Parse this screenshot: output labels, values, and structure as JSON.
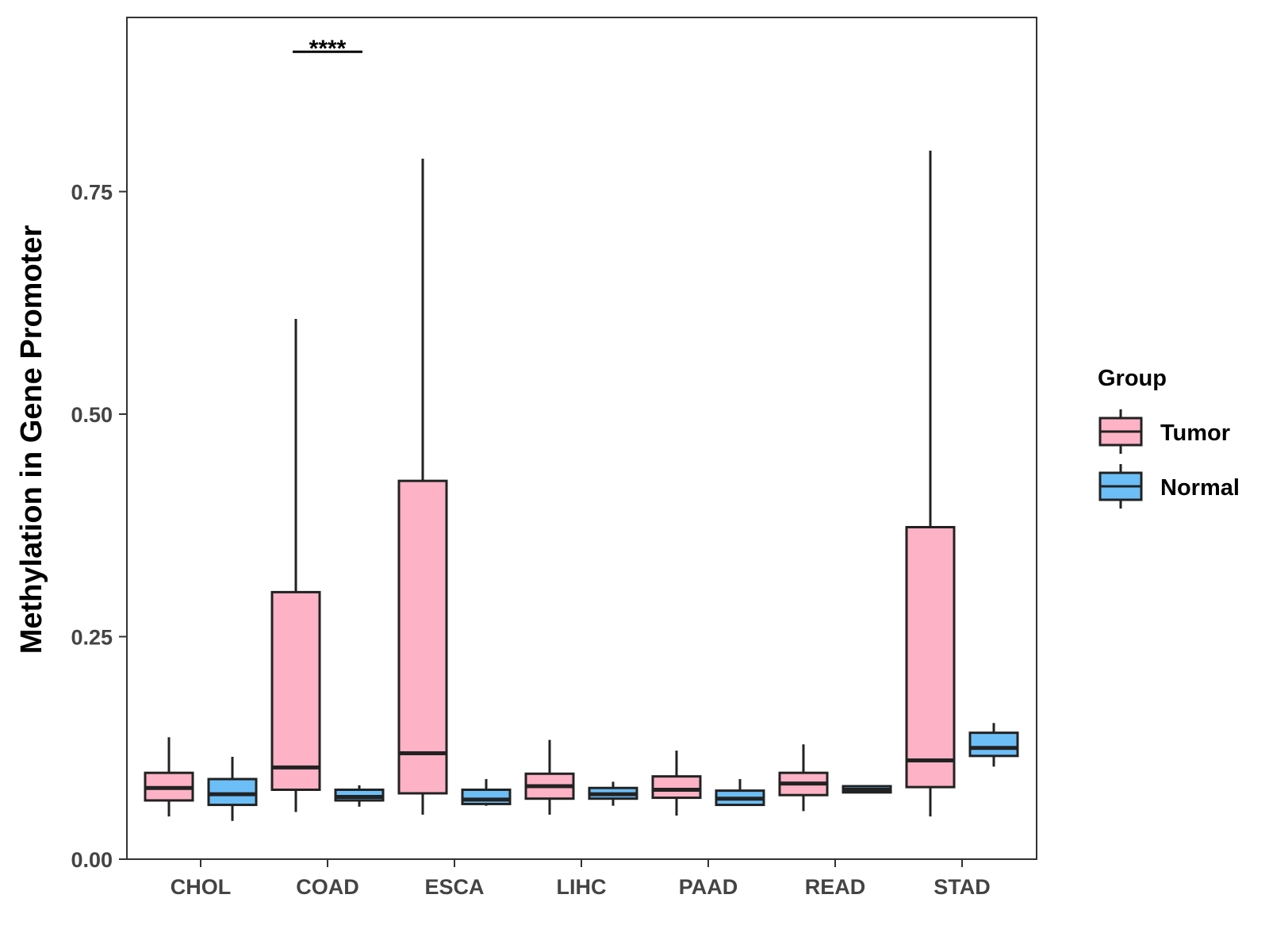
{
  "chart_data": {
    "type": "boxplot",
    "title": "",
    "xlabel": "",
    "ylabel": "Methylation in Gene Promoter",
    "ylim": [
      0,
      0.95
    ],
    "yticks": [
      0.0,
      0.25,
      0.5,
      0.75
    ],
    "ytick_labels": [
      "0.00",
      "0.25",
      "0.50",
      "0.75"
    ],
    "categories": [
      "CHOL",
      "COAD",
      "ESCA",
      "LIHC",
      "PAAD",
      "READ",
      "STAD"
    ],
    "legend": {
      "title": "Group",
      "position": "right",
      "entries": [
        {
          "name": "Tumor",
          "color": "#FDB2C5"
        },
        {
          "name": "Normal",
          "color": "#6CBEF7"
        }
      ]
    },
    "series": [
      {
        "name": "Tumor",
        "color": "#FDB2C5",
        "boxes": [
          {
            "category": "CHOL",
            "lower_whisker": 0.048,
            "q1": 0.066,
            "median": 0.08,
            "q3": 0.097,
            "upper_whisker": 0.137
          },
          {
            "category": "COAD",
            "lower_whisker": 0.053,
            "q1": 0.078,
            "median": 0.103,
            "q3": 0.3,
            "upper_whisker": 0.607
          },
          {
            "category": "ESCA",
            "lower_whisker": 0.05,
            "q1": 0.074,
            "median": 0.119,
            "q3": 0.425,
            "upper_whisker": 0.787
          },
          {
            "category": "LIHC",
            "lower_whisker": 0.05,
            "q1": 0.068,
            "median": 0.082,
            "q3": 0.096,
            "upper_whisker": 0.134
          },
          {
            "category": "PAAD",
            "lower_whisker": 0.049,
            "q1": 0.069,
            "median": 0.078,
            "q3": 0.093,
            "upper_whisker": 0.122
          },
          {
            "category": "READ",
            "lower_whisker": 0.054,
            "q1": 0.072,
            "median": 0.085,
            "q3": 0.097,
            "upper_whisker": 0.129
          },
          {
            "category": "STAD",
            "lower_whisker": 0.048,
            "q1": 0.081,
            "median": 0.111,
            "q3": 0.373,
            "upper_whisker": 0.796
          }
        ]
      },
      {
        "name": "Normal",
        "color": "#6CBEF7",
        "boxes": [
          {
            "category": "CHOL",
            "lower_whisker": 0.043,
            "q1": 0.061,
            "median": 0.073,
            "q3": 0.09,
            "upper_whisker": 0.115
          },
          {
            "category": "COAD",
            "lower_whisker": 0.059,
            "q1": 0.066,
            "median": 0.07,
            "q3": 0.078,
            "upper_whisker": 0.083
          },
          {
            "category": "ESCA",
            "lower_whisker": 0.06,
            "q1": 0.062,
            "median": 0.067,
            "q3": 0.078,
            "upper_whisker": 0.09
          },
          {
            "category": "LIHC",
            "lower_whisker": 0.06,
            "q1": 0.068,
            "median": 0.073,
            "q3": 0.08,
            "upper_whisker": 0.087
          },
          {
            "category": "PAAD",
            "lower_whisker": 0.06,
            "q1": 0.061,
            "median": 0.068,
            "q3": 0.077,
            "upper_whisker": 0.09
          },
          {
            "category": "READ",
            "lower_whisker": 0.075,
            "q1": 0.075,
            "median": 0.078,
            "q3": 0.082,
            "upper_whisker": 0.082
          },
          {
            "category": "STAD",
            "lower_whisker": 0.104,
            "q1": 0.116,
            "median": 0.125,
            "q3": 0.142,
            "upper_whisker": 0.153
          }
        ]
      }
    ],
    "annotations": [
      {
        "category": "COAD",
        "text": "****",
        "y": 0.9
      }
    ]
  }
}
